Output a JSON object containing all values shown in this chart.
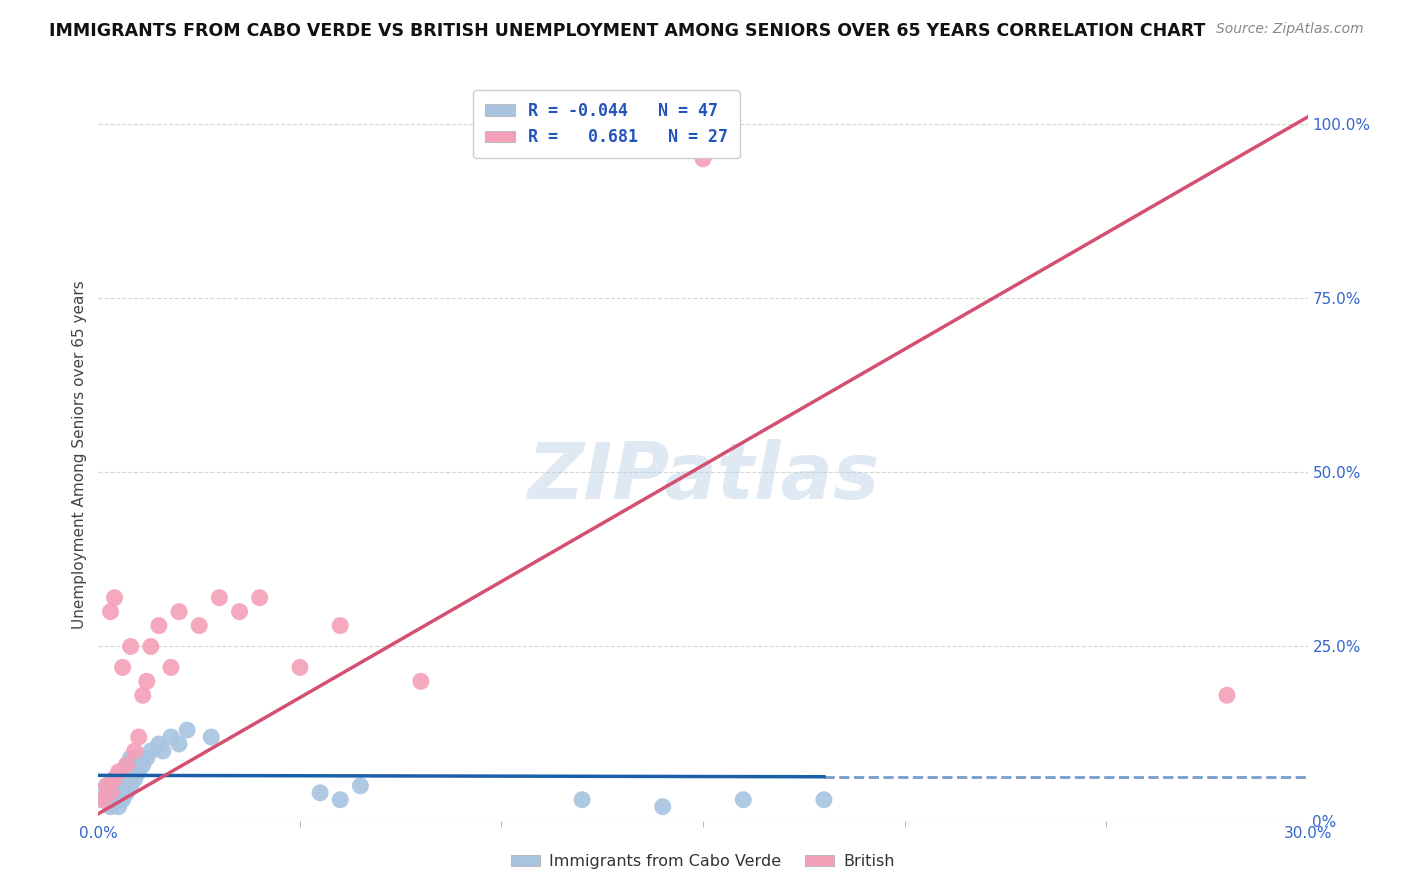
{
  "title": "IMMIGRANTS FROM CABO VERDE VS BRITISH UNEMPLOYMENT AMONG SENIORS OVER 65 YEARS CORRELATION CHART",
  "source": "Source: ZipAtlas.com",
  "ylabel": "Unemployment Among Seniors over 65 years",
  "xlim": [
    0.0,
    0.3
  ],
  "ylim": [
    0.0,
    1.05
  ],
  "ytick_positions": [
    0.0,
    0.25,
    0.5,
    0.75,
    1.0
  ],
  "ytick_labels": [
    "0%",
    "25.0%",
    "50.0%",
    "75.0%",
    "100.0%"
  ],
  "xtick_positions": [
    0.0,
    0.3
  ],
  "xtick_labels": [
    "0.0%",
    "30.0%"
  ],
  "legend_R1": "-0.044",
  "legend_N1": "47",
  "legend_R2": "0.681",
  "legend_N2": "27",
  "series1_color": "#a8c4e0",
  "series2_color": "#f4a0b8",
  "line1_color": "#1a5fa8",
  "line2_color": "#d45070",
  "watermark": "ZIPatlas",
  "background_color": "#ffffff",
  "cabo_verde_x": [
    0.001,
    0.002,
    0.002,
    0.002,
    0.003,
    0.003,
    0.003,
    0.003,
    0.004,
    0.004,
    0.004,
    0.004,
    0.005,
    0.005,
    0.005,
    0.005,
    0.005,
    0.006,
    0.006,
    0.006,
    0.006,
    0.007,
    0.007,
    0.007,
    0.008,
    0.008,
    0.008,
    0.009,
    0.009,
    0.01,
    0.01,
    0.011,
    0.012,
    0.013,
    0.015,
    0.016,
    0.018,
    0.02,
    0.022,
    0.028,
    0.055,
    0.06,
    0.065,
    0.12,
    0.14,
    0.16,
    0.18
  ],
  "cabo_verde_y": [
    0.03,
    0.03,
    0.04,
    0.05,
    0.02,
    0.03,
    0.04,
    0.05,
    0.03,
    0.04,
    0.05,
    0.06,
    0.02,
    0.03,
    0.04,
    0.05,
    0.06,
    0.03,
    0.04,
    0.05,
    0.07,
    0.04,
    0.05,
    0.08,
    0.05,
    0.07,
    0.09,
    0.06,
    0.08,
    0.07,
    0.09,
    0.08,
    0.09,
    0.1,
    0.11,
    0.1,
    0.12,
    0.11,
    0.13,
    0.12,
    0.04,
    0.03,
    0.05,
    0.03,
    0.02,
    0.03,
    0.03
  ],
  "british_x": [
    0.001,
    0.002,
    0.003,
    0.003,
    0.004,
    0.004,
    0.005,
    0.006,
    0.007,
    0.008,
    0.009,
    0.01,
    0.011,
    0.012,
    0.013,
    0.015,
    0.018,
    0.02,
    0.025,
    0.03,
    0.035,
    0.04,
    0.05,
    0.06,
    0.08,
    0.15,
    0.28
  ],
  "british_y": [
    0.03,
    0.05,
    0.04,
    0.3,
    0.06,
    0.32,
    0.07,
    0.22,
    0.08,
    0.25,
    0.1,
    0.12,
    0.18,
    0.2,
    0.25,
    0.28,
    0.22,
    0.3,
    0.28,
    0.32,
    0.3,
    0.32,
    0.22,
    0.28,
    0.2,
    0.95,
    0.18
  ],
  "cv_regression": [
    -0.044,
    0.065
  ],
  "br_regression": [
    3.2,
    0.04
  ]
}
